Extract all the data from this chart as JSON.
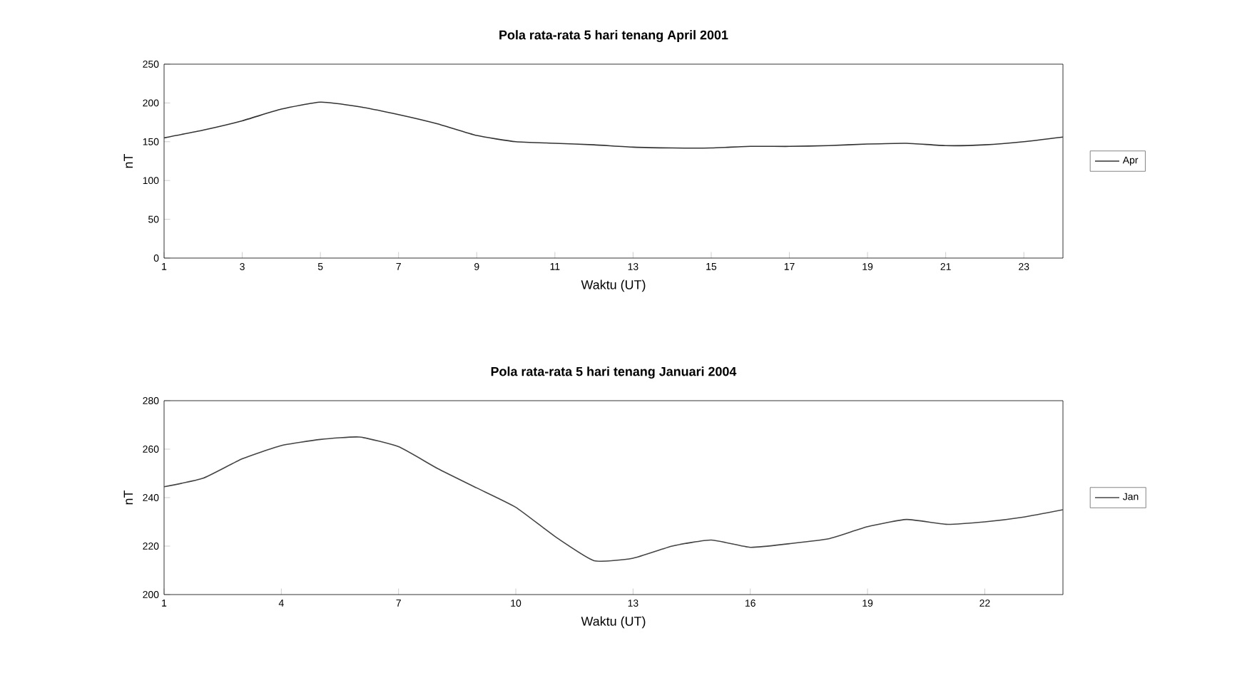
{
  "chart_data": [
    {
      "type": "line",
      "title": "Pola rata-rata 5 hari tenang April 2001",
      "xlabel": "Waktu (UT)",
      "ylabel": "nT",
      "x": [
        1,
        2,
        3,
        4,
        5,
        6,
        7,
        8,
        9,
        10,
        11,
        12,
        13,
        14,
        15,
        16,
        17,
        18,
        19,
        20,
        21,
        22,
        23,
        24
      ],
      "series": [
        {
          "name": "Apr",
          "color": "#333333",
          "values": [
            155,
            165,
            177,
            192,
            201,
            195,
            185,
            173,
            158,
            150,
            148,
            146,
            143,
            142,
            142,
            144,
            144,
            145,
            147,
            148,
            145,
            146,
            150,
            156
          ]
        }
      ],
      "xlim": [
        1,
        24
      ],
      "xticks": [
        1,
        3,
        5,
        7,
        9,
        11,
        13,
        15,
        17,
        19,
        21,
        23
      ],
      "ylim": [
        0,
        250
      ],
      "yticks": [
        0,
        50,
        100,
        150,
        200,
        250
      ],
      "legend": "right",
      "grid": false,
      "marker": "none",
      "line_style": "solid"
    },
    {
      "type": "line",
      "title": "Pola rata-rata 5 hari tenang Januari 2004",
      "xlabel": "Waktu (UT)",
      "ylabel": "nT",
      "x": [
        1,
        2,
        3,
        4,
        5,
        6,
        7,
        8,
        9,
        10,
        11,
        12,
        13,
        14,
        15,
        16,
        17,
        18,
        19,
        20,
        21,
        22,
        23,
        24
      ],
      "series": [
        {
          "name": "Jan",
          "color": "#444444",
          "values": [
            244.5,
            248,
            256,
            261.5,
            264,
            265,
            261,
            252,
            244,
            236,
            224,
            214,
            215,
            220,
            222.5,
            219.5,
            221,
            223,
            228,
            231,
            229,
            230,
            232,
            235
          ]
        }
      ],
      "xlim": [
        1,
        24
      ],
      "xticks": [
        1,
        4,
        7,
        10,
        13,
        16,
        19,
        22
      ],
      "ylim": [
        200,
        280
      ],
      "yticks": [
        200,
        220,
        240,
        260,
        280
      ],
      "legend": "right",
      "grid": false,
      "marker": "none",
      "line_style": "solid"
    }
  ]
}
